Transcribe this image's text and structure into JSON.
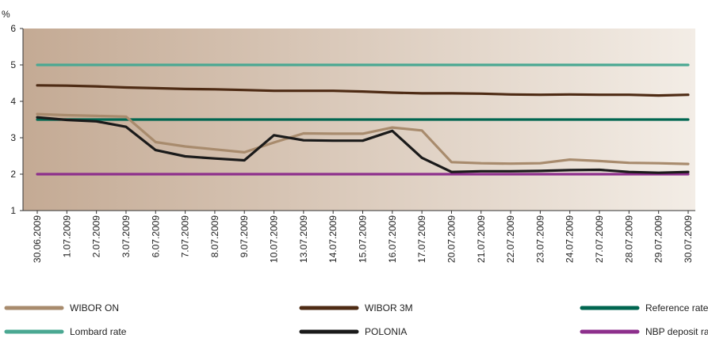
{
  "chart_data": {
    "type": "line",
    "ylabel": "%",
    "ylim": [
      1,
      6
    ],
    "yticks": [
      1,
      2,
      3,
      4,
      5,
      6
    ],
    "grid": false,
    "legend_position": "bottom",
    "background": {
      "left": "#c4aa94",
      "right": "#f3ede6"
    },
    "categories": [
      "30.06.2009",
      "1.07.2009",
      "2.07.2009",
      "3.07.2009",
      "6.07.2009",
      "7.07.2009",
      "8.07.2009",
      "9.07.2009",
      "10.07.2009",
      "13.07.2009",
      "14.07.2009",
      "15.07.2009",
      "16.07.2009",
      "17.07.2009",
      "20.07.2009",
      "21.07.2009",
      "22.07.2009",
      "23.07.2009",
      "24.07.2009",
      "27.07.2009",
      "28.07.2009",
      "29.07.2009",
      "30.07.2009"
    ],
    "series": [
      {
        "name": "WIBOR ON",
        "color": "#a88b6d",
        "values": [
          3.65,
          3.62,
          3.6,
          3.58,
          2.88,
          2.76,
          2.68,
          2.6,
          2.87,
          3.12,
          3.11,
          3.11,
          3.28,
          3.2,
          2.33,
          2.3,
          2.29,
          2.3,
          2.4,
          2.36,
          2.31,
          2.3,
          2.28
        ]
      },
      {
        "name": "WIBOR 3M",
        "color": "#4e2b14",
        "values": [
          4.44,
          4.43,
          4.41,
          4.38,
          4.36,
          4.34,
          4.33,
          4.31,
          4.29,
          4.29,
          4.29,
          4.27,
          4.24,
          4.22,
          4.22,
          4.21,
          4.19,
          4.18,
          4.19,
          4.18,
          4.18,
          4.16,
          4.18
        ]
      },
      {
        "name": "Reference rate",
        "color": "#006650",
        "values": [
          3.5,
          3.5,
          3.5,
          3.5,
          3.5,
          3.5,
          3.5,
          3.5,
          3.5,
          3.5,
          3.5,
          3.5,
          3.5,
          3.5,
          3.5,
          3.5,
          3.5,
          3.5,
          3.5,
          3.5,
          3.5,
          3.5,
          3.5
        ]
      },
      {
        "name": "Lombard rate",
        "color": "#4aa892",
        "values": [
          5,
          5,
          5,
          5,
          5,
          5,
          5,
          5,
          5,
          5,
          5,
          5,
          5,
          5,
          5,
          5,
          5,
          5,
          5,
          5,
          5,
          5,
          5
        ]
      },
      {
        "name": "POLONIA",
        "color": "#1a1a1a",
        "values": [
          3.56,
          3.49,
          3.45,
          3.3,
          2.66,
          2.49,
          2.43,
          2.38,
          3.07,
          2.93,
          2.92,
          2.92,
          3.19,
          2.45,
          2.06,
          2.08,
          2.08,
          2.09,
          2.11,
          2.12,
          2.06,
          2.04,
          2.06
        ]
      },
      {
        "name": "NBP deposit rate",
        "color": "#8d2f8c",
        "values": [
          2,
          2,
          2,
          2,
          2,
          2,
          2,
          2,
          2,
          2,
          2,
          2,
          2,
          2,
          2,
          2,
          2,
          2,
          2,
          2,
          2,
          2,
          2
        ]
      }
    ]
  }
}
